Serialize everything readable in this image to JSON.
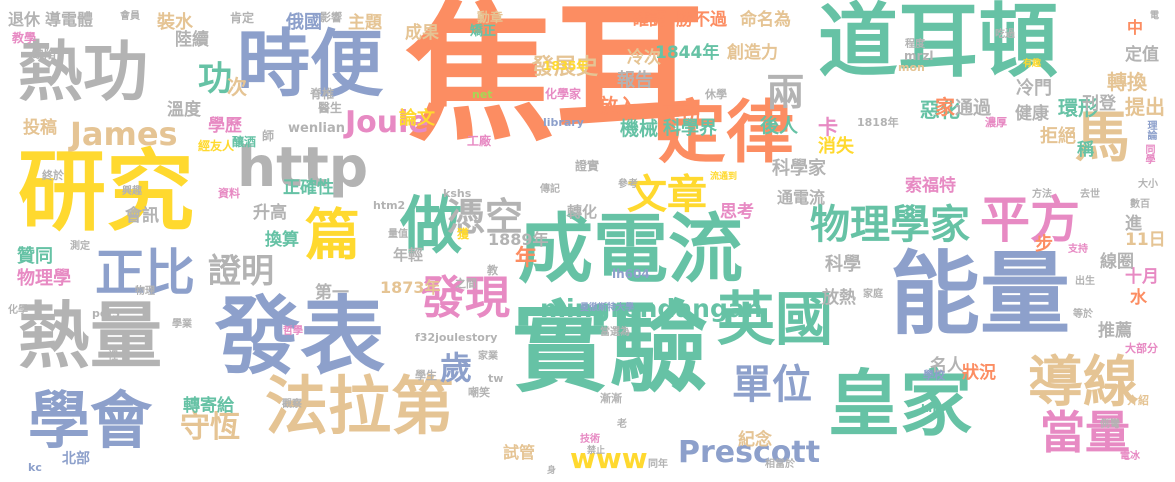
{
  "palette": {
    "orange": "#FC8D62",
    "teal": "#66C2A5",
    "blue": "#8DA0CB",
    "gray": "#B3B3B3",
    "yellow": "#FFD92F",
    "tan": "#E5C494",
    "pink": "#E78AC3",
    "green": "#A6D854"
  },
  "words": [
    {
      "text": "焦耳",
      "color": "orange"
    },
    {
      "text": "研究",
      "color": "yellow"
    },
    {
      "text": "能量",
      "color": "blue"
    },
    {
      "text": "實驗",
      "color": "teal"
    },
    {
      "text": "發表",
      "color": "blue"
    },
    {
      "text": "熱量",
      "color": "gray"
    },
    {
      "text": "道耳頓",
      "color": "teal"
    },
    {
      "text": "時便",
      "color": "blue"
    },
    {
      "text": "熱功",
      "color": "gray"
    },
    {
      "text": "成電流",
      "color": "teal"
    },
    {
      "text": "定律",
      "color": "orange"
    },
    {
      "text": "皇家",
      "color": "teal"
    },
    {
      "text": "法拉第",
      "color": "tan"
    },
    {
      "text": "學會",
      "color": "blue"
    },
    {
      "text": "英國",
      "color": "teal"
    },
    {
      "text": "http",
      "color": "gray"
    },
    {
      "text": "做",
      "color": "teal"
    },
    {
      "text": "篇",
      "color": "yellow"
    },
    {
      "text": "馬",
      "color": "tan"
    },
    {
      "text": "導線",
      "color": "tan"
    },
    {
      "text": "平方",
      "color": "pink"
    },
    {
      "text": "正比",
      "color": "blue"
    },
    {
      "text": "發現",
      "color": "pink"
    },
    {
      "text": "物理學家",
      "color": "teal"
    },
    {
      "text": "文章",
      "color": "yellow"
    },
    {
      "text": "當量",
      "color": "pink"
    },
    {
      "text": "單位",
      "color": "blue"
    },
    {
      "text": "憑空",
      "color": "gray"
    },
    {
      "text": "證明",
      "color": "gray"
    },
    {
      "text": "守恆",
      "color": "tan"
    },
    {
      "text": "James",
      "color": "tan"
    },
    {
      "text": "Joule",
      "color": "pink"
    },
    {
      "text": "Prescott",
      "color": "blue"
    },
    {
      "text": "www",
      "color": "yellow"
    },
    {
      "text": "mingrendangan",
      "color": "teal"
    },
    {
      "text": "功",
      "color": "teal"
    },
    {
      "text": "兩",
      "color": "gray"
    },
    {
      "text": "歲",
      "color": "blue"
    },
    {
      "text": "發展史",
      "color": "tan"
    },
    {
      "text": "1844年",
      "color": "teal"
    },
    {
      "text": "確認",
      "color": "orange"
    },
    {
      "text": "勝不過",
      "color": "orange"
    },
    {
      "text": "命名為",
      "color": "tan"
    },
    {
      "text": "主題",
      "color": "tan"
    },
    {
      "text": "成果",
      "color": "tan"
    },
    {
      "text": "俄國",
      "color": "blue"
    },
    {
      "text": "裝水",
      "color": "tan"
    },
    {
      "text": "陸續",
      "color": "gray"
    },
    {
      "text": "次",
      "color": "tan"
    },
    {
      "text": "報告",
      "color": "gray"
    },
    {
      "text": "冷次",
      "color": "tan"
    },
    {
      "text": "創造力",
      "color": "tan"
    },
    {
      "text": "轉換",
      "color": "tan"
    },
    {
      "text": "定值",
      "color": "gray"
    },
    {
      "text": "冷門",
      "color": "gray"
    },
    {
      "text": "健康",
      "color": "gray"
    },
    {
      "text": "環形",
      "color": "teal"
    },
    {
      "text": "刊登",
      "color": "gray"
    },
    {
      "text": "提出",
      "color": "tan"
    },
    {
      "text": "惡化",
      "color": "teal"
    },
    {
      "text": "通過",
      "color": "gray"
    },
    {
      "text": "家",
      "color": "orange"
    },
    {
      "text": "後人",
      "color": "teal"
    },
    {
      "text": "卡",
      "color": "pink"
    },
    {
      "text": "作功",
      "color": "orange"
    },
    {
      "text": "放入",
      "color": "orange"
    },
    {
      "text": "論文",
      "color": "yellow"
    },
    {
      "text": "機械",
      "color": "teal"
    },
    {
      "text": "學歷",
      "color": "pink"
    },
    {
      "text": "溫度",
      "color": "gray"
    },
    {
      "text": "投稿",
      "color": "tan"
    },
    {
      "text": "科學界",
      "color": "teal"
    },
    {
      "text": "拒絕",
      "color": "tan"
    },
    {
      "text": "消失",
      "color": "yellow"
    },
    {
      "text": "稱",
      "color": "teal"
    },
    {
      "text": "科學家",
      "color": "gray"
    },
    {
      "text": "索福特",
      "color": "pink"
    },
    {
      "text": "正確性",
      "color": "teal"
    },
    {
      "text": "升高",
      "color": "gray"
    },
    {
      "text": "會訊",
      "color": "gray"
    },
    {
      "text": "換算",
      "color": "teal"
    },
    {
      "text": "思考",
      "color": "pink"
    },
    {
      "text": "通電流",
      "color": "gray"
    },
    {
      "text": "轉化",
      "color": "gray"
    },
    {
      "text": "步",
      "color": "orange"
    },
    {
      "text": "進",
      "color": "gray"
    },
    {
      "text": "11日",
      "color": "tan"
    },
    {
      "text": "線圈",
      "color": "gray"
    },
    {
      "text": "十月",
      "color": "pink"
    },
    {
      "text": "水",
      "color": "orange"
    },
    {
      "text": "贊同",
      "color": "teal"
    },
    {
      "text": "物理學",
      "color": "pink"
    },
    {
      "text": "年輕",
      "color": "gray"
    },
    {
      "text": "1889年",
      "color": "gray"
    },
    {
      "text": "1873年",
      "color": "tan"
    },
    {
      "text": "第一",
      "color": "gray"
    },
    {
      "text": "年",
      "color": "orange"
    },
    {
      "text": "科學",
      "color": "gray"
    },
    {
      "text": "放熱",
      "color": "gray"
    },
    {
      "text": "推薦",
      "color": "gray"
    },
    {
      "text": "名人",
      "color": "gray"
    },
    {
      "text": "狀況",
      "color": "orange"
    },
    {
      "text": "轉寄給",
      "color": "teal"
    },
    {
      "text": "紀念",
      "color": "tan"
    },
    {
      "text": "試管",
      "color": "tan"
    },
    {
      "text": "北部",
      "color": "blue"
    },
    {
      "text": "退休",
      "color": "gray"
    },
    {
      "text": "導電體",
      "color": "gray"
    },
    {
      "text": "中",
      "color": "orange"
    },
    {
      "text": "教學",
      "color": "pink"
    },
    {
      "text": "缺陷",
      "color": "gray"
    },
    {
      "text": "肯定",
      "color": "gray"
    },
    {
      "text": "影響",
      "color": "gray"
    },
    {
      "text": "勳章",
      "color": "tan"
    },
    {
      "text": "矯正",
      "color": "teal"
    },
    {
      "text": "1835年",
      "color": "yellow"
    },
    {
      "text": "化學家",
      "color": "pink"
    },
    {
      "text": "醫生",
      "color": "gray"
    },
    {
      "text": "脊椎",
      "color": "gray"
    },
    {
      "text": "net",
      "color": "green"
    },
    {
      "text": "library",
      "color": "blue"
    },
    {
      "text": "休學",
      "color": "gray"
    },
    {
      "text": "工廠",
      "color": "pink"
    },
    {
      "text": "wenlian",
      "color": "gray"
    },
    {
      "text": "釀酒",
      "color": "teal"
    },
    {
      "text": "經友人",
      "color": "yellow"
    },
    {
      "text": "師",
      "color": "gray"
    },
    {
      "text": "證實",
      "color": "gray"
    },
    {
      "text": "1818年",
      "color": "gray"
    },
    {
      "text": "濃厚",
      "color": "pink"
    },
    {
      "text": "mrzl",
      "color": "gray"
    },
    {
      "text": "mon",
      "color": "tan"
    },
    {
      "text": "有趣",
      "color": "yellow"
    },
    {
      "text": "理論",
      "color": "blue"
    },
    {
      "text": "同學",
      "color": "pink"
    },
    {
      "text": "大小",
      "color": "gray"
    },
    {
      "text": "數百",
      "color": "gray"
    },
    {
      "text": "去世",
      "color": "gray"
    },
    {
      "text": "方法",
      "color": "gray"
    },
    {
      "text": "流通到",
      "color": "yellow"
    },
    {
      "text": "傳記",
      "color": "gray"
    },
    {
      "text": "參考",
      "color": "gray"
    },
    {
      "text": "kshs",
      "color": "gray"
    },
    {
      "text": "htm2",
      "color": "gray"
    },
    {
      "text": "量值",
      "color": "gray"
    },
    {
      "text": "資料",
      "color": "pink"
    },
    {
      "text": "終於",
      "color": "gray"
    },
    {
      "text": "興趣",
      "color": "gray"
    },
    {
      "text": "測定",
      "color": "gray"
    },
    {
      "text": "化學",
      "color": "gray"
    },
    {
      "text": "pdf3",
      "color": "gray"
    },
    {
      "text": "f32joulestory",
      "color": "gray"
    },
    {
      "text": "lh604",
      "color": "blue"
    },
    {
      "text": "曼徹斯特大學",
      "color": "blue"
    },
    {
      "text": "哲學",
      "color": "pink"
    },
    {
      "text": "當選為",
      "color": "gray"
    },
    {
      "text": "家業",
      "color": "gray"
    },
    {
      "text": "學生",
      "color": "gray"
    },
    {
      "text": "學校",
      "color": "blue"
    },
    {
      "text": "大部分",
      "color": "pink"
    },
    {
      "text": "支持",
      "color": "pink"
    },
    {
      "text": "出生",
      "color": "gray"
    },
    {
      "text": "等於",
      "color": "gray"
    },
    {
      "text": "家庭",
      "color": "gray"
    },
    {
      "text": "之間",
      "color": "gray"
    },
    {
      "text": "嘲笑",
      "color": "gray"
    },
    {
      "text": "漸漸",
      "color": "gray"
    },
    {
      "text": "觀察",
      "color": "gray"
    },
    {
      "text": "tw",
      "color": "gray"
    },
    {
      "text": "kh",
      "color": "teal"
    },
    {
      "text": "介紹",
      "color": "tan"
    },
    {
      "text": "側彎",
      "color": "gray"
    },
    {
      "text": "相當於",
      "color": "gray"
    },
    {
      "text": "同年",
      "color": "gray"
    },
    {
      "text": "電冰",
      "color": "pink"
    },
    {
      "text": "kc",
      "color": "blue"
    },
    {
      "text": "電",
      "color": "gray"
    },
    {
      "text": "程度",
      "color": "gray"
    },
    {
      "text": "吃過",
      "color": "gray"
    },
    {
      "text": "會員",
      "color": "gray"
    },
    {
      "text": "獲",
      "color": "yellow"
    },
    {
      "text": "物理",
      "color": "gray"
    },
    {
      "text": "教",
      "color": "gray"
    },
    {
      "text": "老",
      "color": "gray"
    },
    {
      "text": "禁止",
      "color": "gray"
    },
    {
      "text": "技術",
      "color": "pink"
    },
    {
      "text": "身",
      "color": "gray"
    },
    {
      "text": "裡",
      "color": "gray"
    },
    {
      "text": "學業",
      "color": "gray"
    }
  ]
}
